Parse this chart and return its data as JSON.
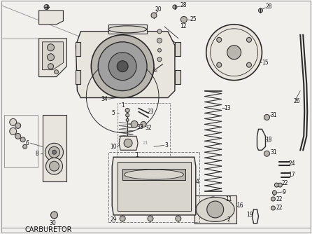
{
  "title_text": "CARBURETOR",
  "bg_color": "#f2f0ec",
  "border_color": "#aaaaaa",
  "text_color": "#111111",
  "fig_width": 4.46,
  "fig_height": 3.34,
  "dpi": 100,
  "title_fontsize": 7.0,
  "line_color": "#2a2a2a",
  "gray_fill": "#d8d5cf",
  "light_fill": "#e8e5df",
  "mid_gray": "#b8b5af"
}
